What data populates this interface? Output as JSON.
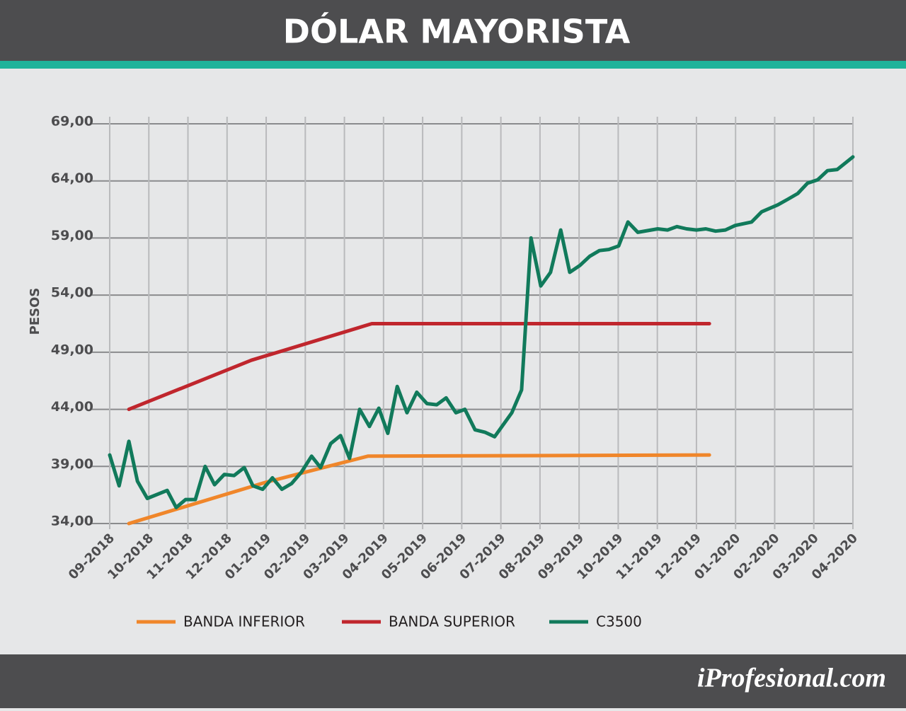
{
  "brand": "iProfesional.com",
  "chart_data": {
    "type": "line",
    "title": "DÓLAR MAYORISTA",
    "y_label": "PESOS",
    "xlim": [
      0,
      19
    ],
    "xticks": [
      {
        "value": 0,
        "label": "09-2018"
      },
      {
        "value": 1,
        "label": "10-2018"
      },
      {
        "value": 2,
        "label": "11-2018"
      },
      {
        "value": 3,
        "label": "12-2018"
      },
      {
        "value": 4,
        "label": "01-2019"
      },
      {
        "value": 5,
        "label": "02-2019"
      },
      {
        "value": 6,
        "label": "03-2019"
      },
      {
        "value": 7,
        "label": "04-2019"
      },
      {
        "value": 8,
        "label": "05-2019"
      },
      {
        "value": 9,
        "label": "06-2019"
      },
      {
        "value": 10,
        "label": "07-2019"
      },
      {
        "value": 11,
        "label": "08-2019"
      },
      {
        "value": 12,
        "label": "09-2019"
      },
      {
        "value": 13,
        "label": "10-2019"
      },
      {
        "value": 14,
        "label": "11-2019"
      },
      {
        "value": 15,
        "label": "12-2019"
      },
      {
        "value": 16,
        "label": "01-2020"
      },
      {
        "value": 17,
        "label": "02-2020"
      },
      {
        "value": 18,
        "label": "03-2020"
      },
      {
        "value": 19,
        "label": "04-2020"
      }
    ],
    "ylim": [
      34,
      69
    ],
    "yticks": [
      {
        "value": 34,
        "label": "34,00"
      },
      {
        "value": 39,
        "label": "39,00"
      },
      {
        "value": 44,
        "label": "44,00"
      },
      {
        "value": 49,
        "label": "49,00"
      },
      {
        "value": 54,
        "label": "54,00"
      },
      {
        "value": 59,
        "label": "59,00"
      },
      {
        "value": 64,
        "label": "64,00"
      },
      {
        "value": 69,
        "label": "69,00"
      }
    ],
    "grid": true,
    "series": [
      {
        "name": "BANDA INFERIOR",
        "color": "#f0862a",
        "x": [
          0.49,
          3.98,
          6.6,
          15.33
        ],
        "values": [
          34.0,
          37.6,
          39.9,
          40.0
        ]
      },
      {
        "name": "BANDA SUPERIOR",
        "color": "#c0262d",
        "x": [
          0.49,
          3.62,
          6.7,
          15.33
        ],
        "values": [
          44.0,
          48.3,
          51.5,
          51.5
        ]
      },
      {
        "name": "C3500",
        "color": "#117a5b",
        "x": [
          0,
          0.24,
          0.49,
          0.71,
          0.96,
          1.47,
          1.7,
          1.94,
          2.19,
          2.44,
          2.68,
          2.93,
          3.18,
          3.44,
          3.66,
          3.91,
          4.16,
          4.4,
          4.65,
          4.9,
          5.16,
          5.39,
          5.65,
          5.9,
          6.13,
          6.39,
          6.64,
          6.88,
          7.11,
          7.35,
          7.6,
          7.85,
          8.11,
          8.36,
          8.6,
          8.85,
          9.08,
          9.34,
          9.59,
          9.84,
          10.28,
          10.53,
          10.77,
          11.02,
          11.27,
          11.53,
          11.76,
          12.02,
          12.27,
          12.52,
          12.76,
          13.01,
          13.25,
          13.5,
          14.01,
          14.26,
          14.5,
          14.75,
          15,
          15.24,
          15.49,
          15.74,
          15.99,
          16.41,
          16.67,
          17.08,
          17.34,
          17.59,
          17.84,
          18.1,
          18.35,
          18.6,
          19
        ],
        "values": [
          40.0,
          37.3,
          41.2,
          37.7,
          36.2,
          36.9,
          35.4,
          36.1,
          36.1,
          39.0,
          37.4,
          38.3,
          38.2,
          38.9,
          37.3,
          37.0,
          38.0,
          37.0,
          37.5,
          38.5,
          39.9,
          38.9,
          41.0,
          41.7,
          39.7,
          44.0,
          42.5,
          44.1,
          41.9,
          46.0,
          43.7,
          45.5,
          44.5,
          44.4,
          45.0,
          43.7,
          44.0,
          42.2,
          42.0,
          41.6,
          43.7,
          45.7,
          59.0,
          54.8,
          56.0,
          59.7,
          56.0,
          56.6,
          57.4,
          57.9,
          58.0,
          58.3,
          60.4,
          59.5,
          59.8,
          59.7,
          60.0,
          59.8,
          59.7,
          59.8,
          59.6,
          59.7,
          60.1,
          60.4,
          61.3,
          61.9,
          62.4,
          62.9,
          63.8,
          64.1,
          64.9,
          65.0,
          66.1
        ]
      }
    ]
  }
}
